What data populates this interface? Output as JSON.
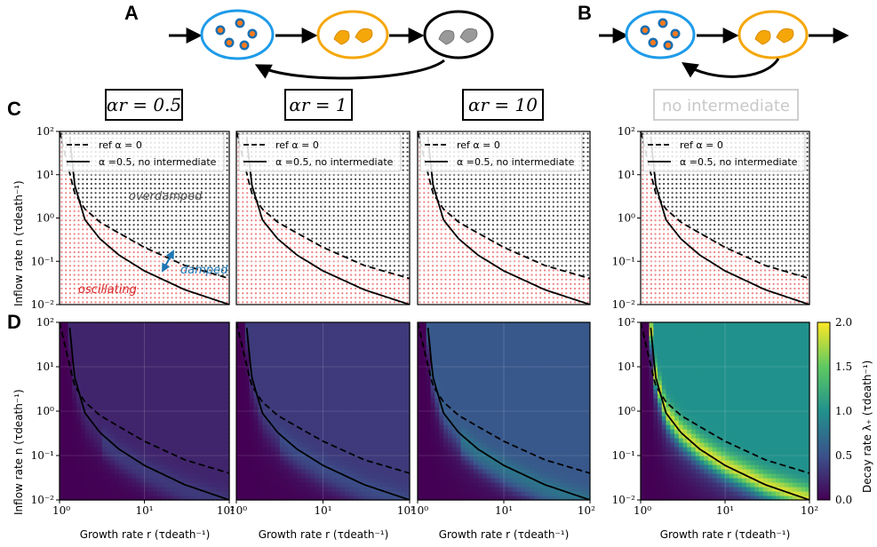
{
  "panel_labels": [
    "A",
    "B",
    "C",
    "D"
  ],
  "column_titles": [
    "αr = 0.5",
    "αr = 1",
    "αr = 10",
    "no intermediate"
  ],
  "legend": {
    "dashed": "ref α = 0",
    "solid": "α =0.5, no intermediate"
  },
  "regions": {
    "overdamped": "overdamped",
    "damped": "damped",
    "oscillating": "oscillating"
  },
  "axes": {
    "ylabel_c": "Inflow rate n (τdeath⁻¹)",
    "ylabel_d": "Inflow rate n (τdeath⁻¹)",
    "xlabel": "Growth rate r (τdeath⁻¹)",
    "x_ticks": [
      "10⁰",
      "10¹",
      "10²"
    ],
    "y_ticks": [
      "10²",
      "10¹",
      "10⁰",
      "10⁻¹",
      "10⁻²"
    ],
    "colorbar_label": "Decay rate λ₊ (τdeath⁻¹)",
    "colorbar_ticks": [
      "2.0",
      "1.5",
      "1.0",
      "0.5",
      "0.0"
    ]
  },
  "colors": {
    "blue": "#1e9be9",
    "orange": "#f5a70a",
    "gray": "#8a8a8a",
    "red_dot": "#f08080",
    "dark_dot": "#444444",
    "damped_text": "#1f77b4",
    "oscillating_text": "#d62728"
  },
  "chart_data": [
    {
      "type": "heatmap",
      "panel": "C",
      "title": "αr = 0.5",
      "alpha_r": 0.5,
      "xlim": [
        1,
        100
      ],
      "ylim": [
        0.01,
        100
      ],
      "xscale": "log",
      "yscale": "log",
      "series": [
        {
          "name": "ref α = 0",
          "style": "dashed",
          "x": [
            1,
            1.5,
            2,
            3,
            5,
            10,
            30,
            100
          ],
          "y": [
            100,
            3.8,
            1.6,
            0.8,
            0.45,
            0.21,
            0.08,
            0.04
          ]
        },
        {
          "name": "α =0.5, no intermediate",
          "style": "solid",
          "x": [
            1.3,
            1.5,
            2,
            3,
            5,
            10,
            30,
            100
          ],
          "y": [
            100,
            6,
            0.9,
            0.33,
            0.14,
            0.06,
            0.022,
            0.01
          ]
        }
      ]
    },
    {
      "type": "heatmap",
      "panel": "C",
      "title": "αr = 1",
      "alpha_r": 1,
      "xlim": [
        1,
        100
      ],
      "ylim": [
        0.01,
        100
      ]
    },
    {
      "type": "heatmap",
      "panel": "C",
      "title": "αr = 10",
      "alpha_r": 10,
      "xlim": [
        1,
        100
      ],
      "ylim": [
        0.01,
        100
      ]
    },
    {
      "type": "heatmap",
      "panel": "C",
      "title": "no intermediate",
      "xlim": [
        1,
        100
      ],
      "ylim": [
        0.01,
        100
      ]
    },
    {
      "type": "heatmap",
      "panel": "D",
      "title": "αr = 0.5",
      "zlabel": "Decay rate λ₊",
      "zlim": [
        0,
        2
      ],
      "plateau": 0.22
    },
    {
      "type": "heatmap",
      "panel": "D",
      "title": "αr = 1",
      "zlim": [
        0,
        2
      ],
      "plateau": 0.35
    },
    {
      "type": "heatmap",
      "panel": "D",
      "title": "αr = 10",
      "zlim": [
        0,
        2
      ],
      "plateau": 0.55
    },
    {
      "type": "heatmap",
      "panel": "D",
      "title": "no intermediate",
      "zlim": [
        0,
        2
      ],
      "plateau": 1.0
    }
  ]
}
